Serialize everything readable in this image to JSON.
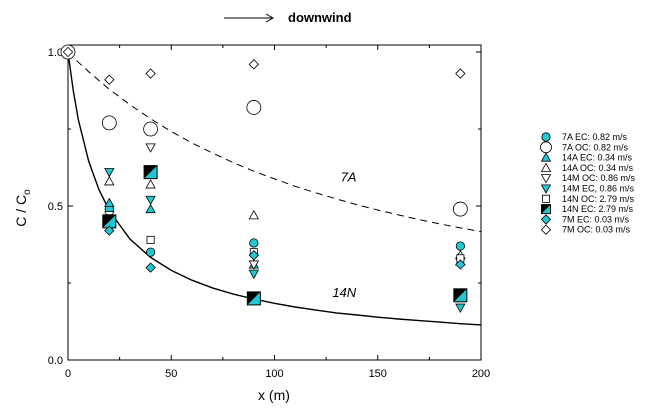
{
  "chart_data": {
    "type": "scatter",
    "title": "",
    "annotation_top": "downwind",
    "xlabel": "x (m)",
    "ylabel_main": "C / C",
    "ylabel_sub": "o",
    "xlim": [
      0,
      200
    ],
    "ylim": [
      0,
      1.05
    ],
    "xticks": [
      0,
      50,
      100,
      150,
      200
    ],
    "yticks": [
      0.0,
      0.5,
      1.0
    ],
    "xtick_labels": [
      "0",
      "50",
      "100",
      "150",
      "200"
    ],
    "ytick_labels": [
      "0.0",
      "0.5",
      "1.0"
    ],
    "grid": false,
    "legend_position": "right",
    "colors": {
      "cyan": "#22c7d4",
      "black": "#000000",
      "white": "#ffffff"
    },
    "curves": [
      {
        "name": "7A",
        "style": "dashed",
        "x": [
          0,
          5,
          10,
          20,
          30,
          40,
          50,
          60,
          70,
          80,
          90,
          100,
          110,
          120,
          130,
          140,
          150,
          160,
          170,
          180,
          190,
          200
        ],
        "y": [
          1.0,
          0.967,
          0.936,
          0.879,
          0.829,
          0.783,
          0.742,
          0.705,
          0.672,
          0.641,
          0.613,
          0.588,
          0.564,
          0.543,
          0.523,
          0.504,
          0.487,
          0.471,
          0.456,
          0.442,
          0.429,
          0.417
        ],
        "label": "7A",
        "label_x": 132,
        "label_y": 0.58
      },
      {
        "name": "14N",
        "style": "solid",
        "x": [
          0,
          2.5,
          5,
          10,
          15,
          20,
          30,
          40,
          50,
          60,
          70,
          80,
          90,
          100,
          110,
          120,
          130,
          140,
          150,
          160,
          170,
          180,
          190,
          200
        ],
        "y": [
          1.0,
          0.876,
          0.781,
          0.645,
          0.553,
          0.485,
          0.393,
          0.333,
          0.291,
          0.259,
          0.234,
          0.214,
          0.198,
          0.184,
          0.172,
          0.162,
          0.153,
          0.146,
          0.139,
          0.133,
          0.128,
          0.123,
          0.118,
          0.114
        ],
        "label": "14N",
        "label_x": 128,
        "label_y": 0.205
      }
    ],
    "series": [
      {
        "name": "7A EC: 0.82 m/s",
        "marker": "circle",
        "fill": "cyan",
        "size": "small",
        "x": [
          20,
          40,
          90,
          190
        ],
        "y": [
          0.49,
          0.35,
          0.38,
          0.37
        ]
      },
      {
        "name": "7A OC: 0.82 m/s",
        "marker": "circle",
        "fill": "white",
        "size": "large",
        "x": [
          0,
          20,
          40,
          90,
          190
        ],
        "y": [
          1.0,
          0.77,
          0.75,
          0.82,
          0.49
        ]
      },
      {
        "name": "14A EC: 0.34 m/s",
        "marker": "triangle-up",
        "fill": "cyan",
        "size": "small",
        "x": [
          20,
          40,
          90,
          190
        ],
        "y": [
          0.51,
          0.49,
          0.31,
          0.32
        ]
      },
      {
        "name": "14A OC: 0.34 m/s",
        "marker": "triangle-up",
        "fill": "white",
        "size": "small",
        "x": [
          20,
          40,
          90,
          190
        ],
        "y": [
          0.58,
          0.57,
          0.47,
          0.34
        ]
      },
      {
        "name": "14M OC: 0.86 m/s",
        "marker": "triangle-down",
        "fill": "white",
        "size": "small",
        "x": [
          20,
          40,
          90,
          190
        ],
        "y": [
          0.47,
          0.69,
          0.31,
          0.32
        ]
      },
      {
        "name": "14M EC, 0.86 m/s",
        "marker": "triangle-down",
        "fill": "cyan",
        "size": "small",
        "x": [
          20,
          40,
          90,
          190
        ],
        "y": [
          0.61,
          0.52,
          0.28,
          0.17
        ]
      },
      {
        "name": "14N OC: 2.79 m/s",
        "marker": "square",
        "fill": "white",
        "size": "small",
        "x": [
          20,
          40,
          90,
          190
        ],
        "y": [
          0.46,
          0.39,
          0.35,
          0.33
        ]
      },
      {
        "name": "14N EC: 2.79 m/s",
        "marker": "square-half",
        "fill": "half",
        "size": "large",
        "x": [
          20,
          40,
          90,
          190
        ],
        "y": [
          0.45,
          0.61,
          0.2,
          0.21
        ]
      },
      {
        "name": "7M EC: 0.03 m/s",
        "marker": "diamond",
        "fill": "cyan",
        "size": "small",
        "x": [
          20,
          40,
          90,
          190
        ],
        "y": [
          0.42,
          0.3,
          0.34,
          0.31
        ]
      },
      {
        "name": "7M OC: 0.03 m/s",
        "marker": "diamond",
        "fill": "white",
        "size": "small",
        "x": [
          0,
          20,
          40,
          90,
          190
        ],
        "y": [
          1.0,
          0.91,
          0.93,
          0.96,
          0.93
        ]
      }
    ]
  }
}
